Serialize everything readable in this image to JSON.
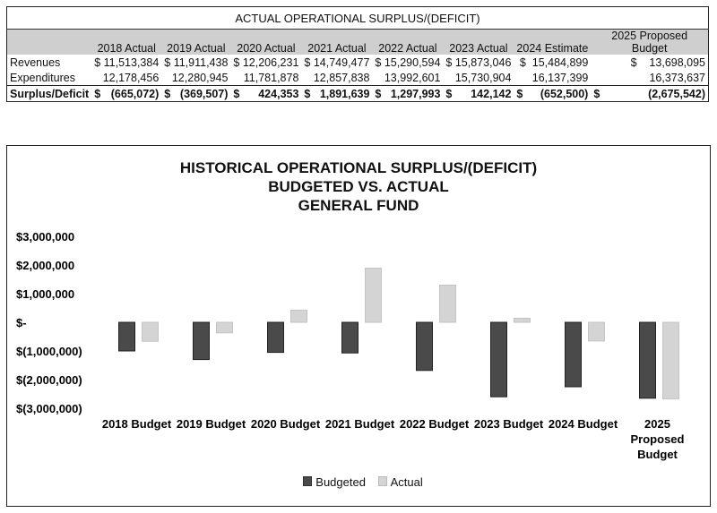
{
  "table": {
    "title": "ACTUAL OPERATIONAL SURPLUS/(DEFICIT)",
    "headers": [
      "2018 Actual",
      "2019 Actual",
      "2020 Actual",
      "2021 Actual",
      "2022 Actual",
      "2023 Actual",
      "2024 Estimate",
      "2025 Proposed Budget"
    ],
    "rows": [
      {
        "label": "Revenues",
        "values": [
          "$ 11,513,384",
          "$ 11,911,438",
          "$ 12,206,231",
          "$ 14,749,477",
          "$ 15,290,594",
          "$ 15,873,046",
          "$  15,484,899",
          "$    13,698,095"
        ]
      },
      {
        "label": "Expenditures",
        "values": [
          "12,178,456",
          "12,280,945",
          "11,781,878",
          "12,857,838",
          "13,992,601",
          "15,730,904",
          "16,137,399",
          "16,373,637"
        ]
      },
      {
        "label": "Surplus/Deficit",
        "values": [
          "(665,072)",
          "(369,507)",
          "424,353",
          "1,891,639",
          "1,297,993",
          "142,142",
          "(652,500)",
          "(2,675,542)"
        ],
        "currency": "$"
      }
    ]
  },
  "chart_data": {
    "type": "bar",
    "title": [
      "HISTORICAL OPERATIONAL SURPLUS/(DEFICIT)",
      "BUDGETED VS. ACTUAL",
      "GENERAL FUND"
    ],
    "categories": [
      "2018 Budget",
      "2019 Budget",
      "2020 Budget",
      "2021 Budget",
      "2022 Budget",
      "2023 Budget",
      "2024 Budget",
      "2025 Proposed Budget"
    ],
    "series": [
      {
        "name": "Budgeted",
        "color": "#4a4a4a",
        "values": [
          -1000000,
          -1300000,
          -1050000,
          -1070000,
          -1680000,
          -2600000,
          -2250000,
          -2650000
        ]
      },
      {
        "name": "Actual",
        "color": "#d4d4d4",
        "values": [
          -665072,
          -369507,
          424353,
          1891639,
          1297993,
          142142,
          -652500,
          -2675542
        ]
      }
    ],
    "ylim": [
      -3000000,
      3000000
    ],
    "yticks": [
      3000000,
      2000000,
      1000000,
      0,
      -1000000,
      -2000000,
      -3000000
    ],
    "ytick_labels": [
      "$3,000,000",
      "$2,000,000",
      "$1,000,000",
      "$-",
      "$(1,000,000)",
      "$(2,000,000)",
      "$(3,000,000)"
    ],
    "legend": "bottom"
  }
}
